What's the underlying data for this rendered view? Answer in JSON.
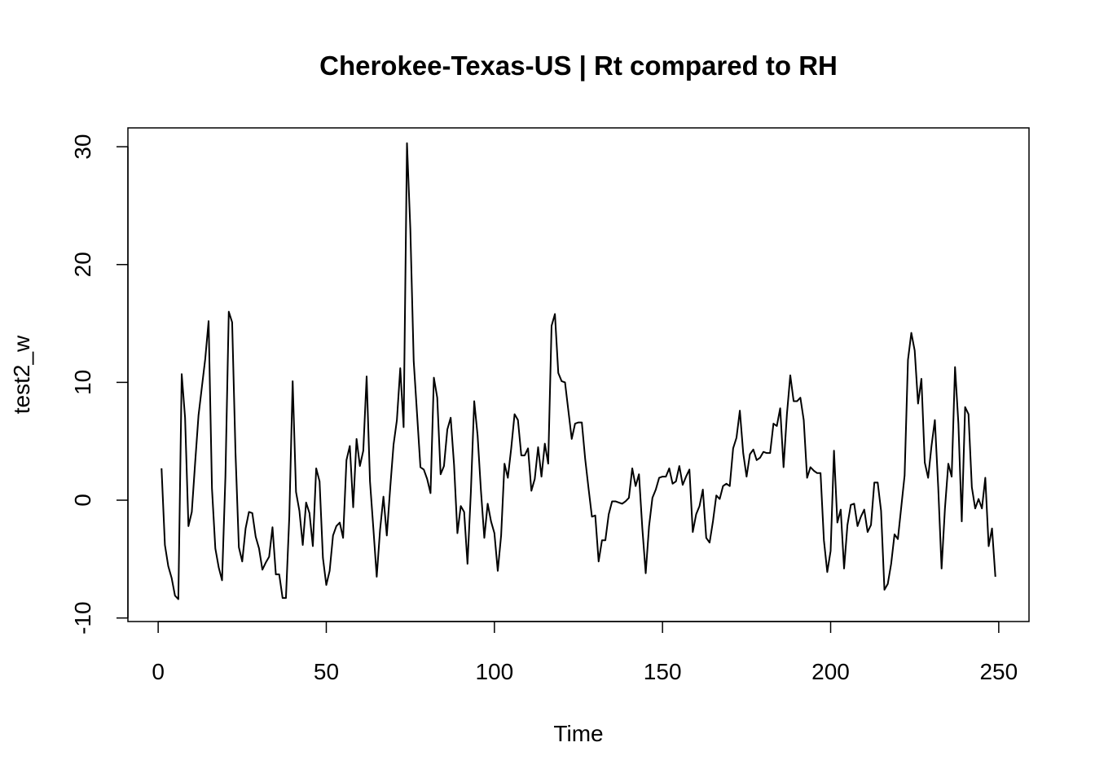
{
  "chart_data": {
    "type": "line",
    "title": "Cherokee-Texas-US | Rt compared to RH",
    "xlabel": "Time",
    "ylabel": "test2_w",
    "xlim": [
      -9,
      259
    ],
    "ylim": [
      -10.3,
      31.6
    ],
    "x_ticks": [
      0,
      50,
      100,
      150,
      200,
      250
    ],
    "y_ticks": [
      -10,
      0,
      10,
      20,
      30
    ],
    "x_tick_labels": [
      "0",
      "50",
      "100",
      "150",
      "200",
      "250"
    ],
    "y_tick_labels": [
      "-10",
      "0",
      "10",
      "20",
      "30"
    ],
    "grid": false,
    "box": true,
    "line_color": "#000000",
    "series": [
      {
        "x_start": 1,
        "values": [
          2.7,
          -3.8,
          -5.6,
          -6.6,
          -8.1,
          -8.4,
          10.7,
          7.0,
          -2.2,
          -1.0,
          3.2,
          7.2,
          9.6,
          12.0,
          15.2,
          1.0,
          -4.1,
          -5.7,
          -6.8,
          2.0,
          16.0,
          15.1,
          4.0,
          -4.0,
          -5.2,
          -2.4,
          -1.0,
          -1.1,
          -3.1,
          -4.1,
          -5.9,
          -5.3,
          -4.8,
          -2.3,
          -6.3,
          -6.3,
          -8.3,
          -8.3,
          -1.4,
          10.1,
          0.7,
          -0.9,
          -3.8,
          -0.2,
          -1.1,
          -3.9,
          2.7,
          1.6,
          -4.9,
          -7.2,
          -6.0,
          -3.0,
          -2.2,
          -1.9,
          -3.2,
          3.4,
          4.6,
          -0.6,
          5.2,
          2.9,
          4.2,
          10.5,
          1.6,
          -2.4,
          -6.5,
          -2.5,
          0.3,
          -3.0,
          1.0,
          4.7,
          6.8,
          11.2,
          6.2,
          30.3,
          23.0,
          11.8,
          7.3,
          2.8,
          2.6,
          1.8,
          0.6,
          10.4,
          8.7,
          2.2,
          2.9,
          6.0,
          7.0,
          3.0,
          -2.8,
          -0.5,
          -1.0,
          -5.4,
          0.7,
          8.4,
          5.5,
          0.8,
          -3.2,
          -0.3,
          -1.8,
          -2.8,
          -6.0,
          -3.0,
          3.1,
          1.9,
          4.4,
          7.3,
          6.8,
          3.8,
          3.8,
          4.4,
          0.8,
          1.8,
          4.5,
          2.0,
          4.8,
          3.1,
          14.8,
          15.8,
          10.8,
          10.1,
          10.0,
          7.6,
          5.2,
          6.5,
          6.6,
          6.6,
          3.5,
          1.0,
          -1.4,
          -1.3,
          -5.2,
          -3.4,
          -3.4,
          -1.2,
          -0.1,
          -0.1,
          -0.2,
          -0.3,
          -0.1,
          0.2,
          2.7,
          1.2,
          2.2,
          -2.4,
          -6.2,
          -2.2,
          0.2,
          0.9,
          1.9,
          2.0,
          2.0,
          2.7,
          1.4,
          1.6,
          2.9,
          1.3,
          2.0,
          2.6,
          -2.7,
          -1.2,
          -0.5,
          0.9,
          -3.2,
          -3.6,
          -1.8,
          0.4,
          0.1,
          1.2,
          1.4,
          1.2,
          4.4,
          5.3,
          7.6,
          4.0,
          2.0,
          3.9,
          4.3,
          3.4,
          3.6,
          4.1,
          4.0,
          4.0,
          6.5,
          6.3,
          7.8,
          2.8,
          7.3,
          10.6,
          8.4,
          8.4,
          8.7,
          6.8,
          1.9,
          2.8,
          2.5,
          2.3,
          2.3,
          -3.4,
          -6.1,
          -4.3,
          4.2,
          -1.9,
          -0.8,
          -5.8,
          -2.1,
          -0.4,
          -0.3,
          -2.2,
          -1.4,
          -0.8,
          -2.7,
          -2.1,
          1.5,
          1.5,
          -0.9,
          -7.6,
          -7.1,
          -5.4,
          -2.9,
          -3.3,
          -0.6,
          2.1,
          11.9,
          14.2,
          12.7,
          8.2,
          10.3,
          3.2,
          1.9,
          4.6,
          6.8,
          1.1,
          -5.8,
          -0.7,
          3.1,
          2.0,
          11.3,
          6.5,
          -1.8,
          7.9,
          7.3,
          1.1,
          -0.7,
          0.1,
          -0.7,
          1.9,
          -3.9,
          -2.4,
          -6.5
        ]
      }
    ]
  }
}
